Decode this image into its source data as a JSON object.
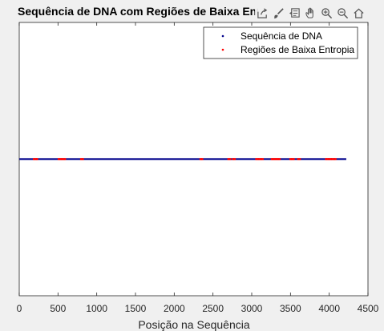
{
  "window": {
    "title": "Sequência de DNA com Regiões de Baixa Entropia"
  },
  "toolbar": {
    "icons": [
      "export-icon",
      "brush-icon",
      "datatip-icon",
      "pan-icon",
      "zoom-in-icon",
      "zoom-out-icon",
      "home-icon"
    ]
  },
  "colors": {
    "sequence": "#00008b",
    "low_entropy": "#ff0000",
    "axes_bg": "#ffffff",
    "figure_bg": "#f0f0f0"
  },
  "chart_data": {
    "type": "scatter",
    "title": "Sequência de DNA com Regiões de Baixa Entropia",
    "xlabel": "Posição na Sequência",
    "ylabel": "",
    "xlim": [
      0,
      4500
    ],
    "ylim": [
      -1,
      1
    ],
    "x_ticks": [
      "0",
      "500",
      "1000",
      "1500",
      "2000",
      "2500",
      "3000",
      "3500",
      "4000",
      "4500"
    ],
    "y_ticks": [],
    "grid": false,
    "legend_position": "top-right",
    "series": [
      {
        "name": "Sequência de DNA",
        "marker": ".",
        "color": "#00008b",
        "x_range": [
          1,
          4220
        ],
        "y": 0
      },
      {
        "name": "Regiões de Baixa Entropia",
        "marker": ".",
        "color": "#ff0000",
        "x": [
          190,
          210,
          230,
          510,
          530,
          550,
          570,
          590,
          800,
          820,
          2340,
          2360,
          2700,
          2720,
          2760,
          2780,
          3060,
          3080,
          3100,
          3120,
          3140,
          3260,
          3280,
          3300,
          3320,
          3340,
          3360,
          3500,
          3520,
          3540,
          3600,
          3620,
          3960,
          3980,
          4000,
          4020,
          4040,
          4060,
          4080
        ],
        "y": 0
      }
    ]
  }
}
